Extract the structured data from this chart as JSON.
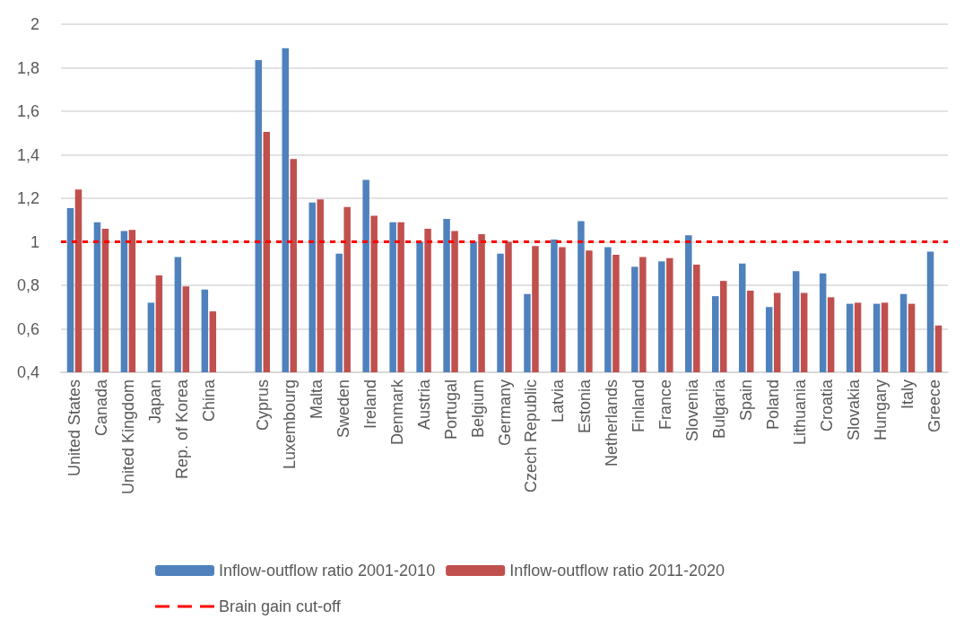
{
  "chart_data": {
    "type": "bar",
    "categories": [
      "United States",
      "Canada",
      "United Kingdom",
      "Japan",
      "Rep. of Korea",
      "China",
      null,
      "Cyprus",
      "Luxembourg",
      "Malta",
      "Sweden",
      "Ireland",
      "Denmark",
      "Austria",
      "Portugal",
      "Belgium",
      "Germany",
      "Czech Republic",
      "Latvia",
      "Estonia",
      "Netherlands",
      "Finland",
      "France",
      "Slovenia",
      "Bulgaria",
      "Spain",
      "Poland",
      "Lithuania",
      "Croatia",
      "Slovakia",
      "Hungary",
      "Italy",
      "Greece"
    ],
    "series": [
      {
        "name": "Inflow-outflow ratio 2001-2010",
        "color": "#4f81bd",
        "values": [
          1.155,
          1.09,
          1.05,
          0.72,
          0.93,
          0.78,
          null,
          1.835,
          1.89,
          1.18,
          0.945,
          1.285,
          1.09,
          1.0,
          1.105,
          1.0,
          0.945,
          0.76,
          1.01,
          1.095,
          0.975,
          0.885,
          0.91,
          1.03,
          0.75,
          0.9,
          0.7,
          0.865,
          0.855,
          0.715,
          0.715,
          0.76,
          0.955
        ]
      },
      {
        "name": "Inflow-outflow ratio 2011-2020",
        "color": "#c0504d",
        "values": [
          1.24,
          1.06,
          1.055,
          0.845,
          0.795,
          0.68,
          null,
          1.505,
          1.38,
          1.195,
          1.16,
          1.12,
          1.09,
          1.06,
          1.05,
          1.035,
          1.0,
          0.98,
          0.975,
          0.96,
          0.94,
          0.93,
          0.925,
          0.895,
          0.82,
          0.775,
          0.765,
          0.765,
          0.745,
          0.72,
          0.72,
          0.715,
          0.615
        ]
      }
    ],
    "ylim": [
      0.4,
      2
    ],
    "yticks": [
      {
        "value": 0.4,
        "label": "0,4"
      },
      {
        "value": 0.6,
        "label": "0,6"
      },
      {
        "value": 0.8,
        "label": "0,8"
      },
      1,
      {
        "value": 1.2,
        "label": "1,2"
      },
      {
        "value": 1.4,
        "label": "1,4"
      },
      {
        "value": 1.6,
        "label": "1,6"
      },
      {
        "value": 1.8,
        "label": "1,8"
      },
      2
    ],
    "ref_lines": [
      {
        "axis": "y",
        "value": 1,
        "label": "Brain gain cut-off",
        "color": "#ff0000",
        "line_style": "dashed"
      }
    ],
    "grid": "y",
    "legend": "bottom"
  }
}
